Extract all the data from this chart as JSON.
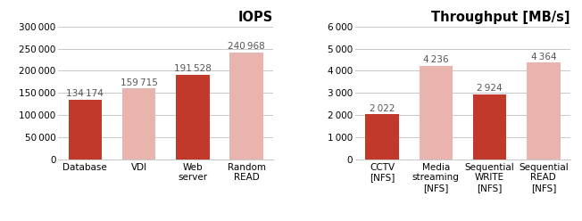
{
  "iops": {
    "title": "IOPS",
    "categories": [
      "Database",
      "VDI",
      "Web\nserver",
      "Random\nREAD"
    ],
    "values": [
      134174,
      159715,
      191528,
      240968
    ],
    "colors": [
      "#c0392b",
      "#e8b4ad",
      "#c0392b",
      "#e8b4ad"
    ],
    "ylim": [
      0,
      300000
    ],
    "yticks": [
      0,
      50000,
      100000,
      150000,
      200000,
      250000,
      300000
    ],
    "ytick_labels": [
      "0",
      "50 000",
      "100 000",
      "150 000",
      "200 000",
      "250 000",
      "300 000"
    ],
    "labels": [
      "134 174",
      "159 715",
      "191 528",
      "240 968"
    ]
  },
  "throughput": {
    "title": "Throughput [MB/s]",
    "categories": [
      "CCTV\n[NFS]",
      "Media\nstreaming\n[NFS]",
      "Sequential\nWRITE\n[NFS]",
      "Sequential\nREAD\n[NFS]"
    ],
    "values": [
      2022,
      4236,
      2924,
      4364
    ],
    "colors": [
      "#c0392b",
      "#e8b4ad",
      "#c0392b",
      "#e8b4ad"
    ],
    "ylim": [
      0,
      6000
    ],
    "yticks": [
      0,
      1000,
      2000,
      3000,
      4000,
      5000,
      6000
    ],
    "ytick_labels": [
      "0",
      "1 000",
      "2 000",
      "3 000",
      "4 000",
      "5 000",
      "6 000"
    ],
    "labels": [
      "2 022",
      "4 236",
      "2 924",
      "4 364"
    ]
  },
  "bg_color": "#ffffff",
  "grid_color": "#c8c8c8",
  "bar_width": 0.62,
  "title_fontsize": 10.5,
  "title_fontweight": "bold",
  "tick_fontsize": 7.5,
  "label_fontsize": 7.5
}
